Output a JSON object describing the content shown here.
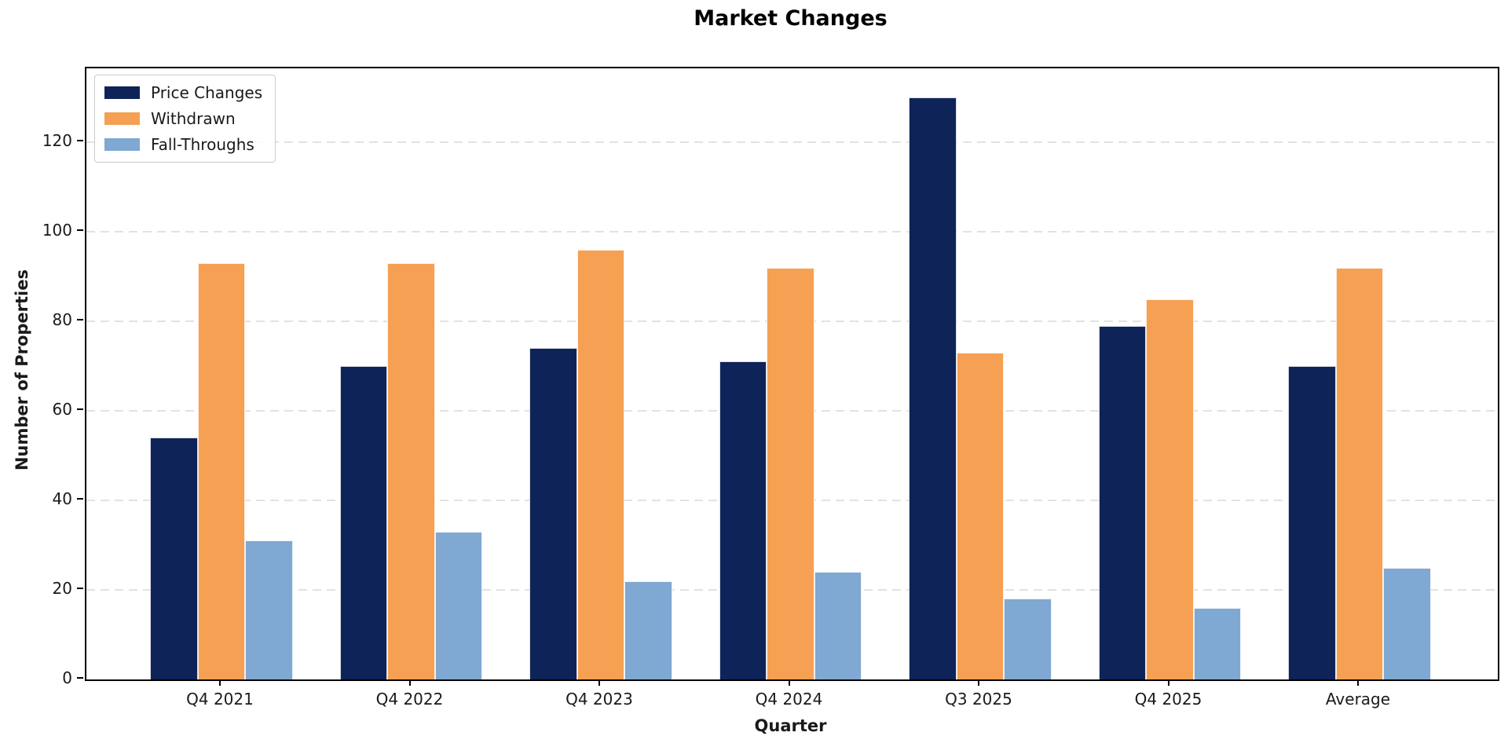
{
  "chart_data": {
    "type": "bar",
    "title": "Market Changes",
    "xlabel": "Quarter",
    "ylabel": "Number of Properties",
    "categories": [
      "Q4 2021",
      "Q4 2022",
      "Q4 2023",
      "Q4 2024",
      "Q3 2025",
      "Q4 2025",
      "Average"
    ],
    "series": [
      {
        "name": "Price Changes",
        "color": "#0e2458",
        "values": [
          54,
          70,
          74,
          71,
          130,
          79,
          70
        ]
      },
      {
        "name": "Withdrawn",
        "color": "#f6a054",
        "values": [
          93,
          93,
          96,
          92,
          73,
          85,
          92
        ]
      },
      {
        "name": "Fall-Throughs",
        "color": "#7fa8d2",
        "values": [
          31,
          33,
          22,
          24,
          18,
          16,
          25
        ]
      }
    ],
    "yticks": [
      0,
      20,
      40,
      60,
      80,
      100,
      120
    ],
    "ylim": [
      0,
      136.5
    ],
    "grid": "horizontal-dashed",
    "gridline_color": "#e2e2e2",
    "legend_position": "upper-left",
    "axis_color": "#000000"
  }
}
